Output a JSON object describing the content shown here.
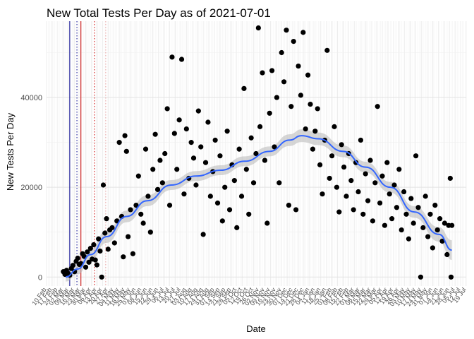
{
  "chart_data": {
    "type": "scatter",
    "title": "New Total Tests Per Day as of 2021-07-01",
    "xlabel": "Date",
    "ylabel": "New Tests Per Day",
    "ylim": [
      -2000,
      57000
    ],
    "yticks": [
      0,
      20000,
      40000
    ],
    "ytick_labels": [
      "0",
      "20000",
      "40000"
    ],
    "xlim": [
      "2020-02-10",
      "2021-07-19"
    ],
    "grid": true,
    "xtick_labels": [
      "10 Feb",
      "17 Feb",
      "24 Feb",
      "02 Mar",
      "09 Mar",
      "16 Mar",
      "23 Mar",
      "30 Mar",
      "06 Apr",
      "13 Apr",
      "20 Apr",
      "27 Apr",
      "04 May",
      "11 May",
      "18 May",
      "25 May",
      "01 Jun",
      "08 Jun",
      "15 Jun",
      "22 Jun",
      "29 Jun",
      "06 Jul",
      "13 Jul",
      "20 Jul",
      "27 Jul",
      "03 Aug",
      "10 Aug",
      "17 Aug",
      "24 Aug",
      "31 Aug",
      "07 Sep",
      "14 Sep",
      "21 Sep",
      "28 Sep",
      "05 Oct",
      "12 Oct",
      "19 Oct",
      "26 Oct",
      "02 Nov",
      "09 Nov",
      "16 Nov",
      "23 Nov",
      "30 Nov",
      "07 Dec",
      "14 Dec",
      "21 Dec",
      "28 Dec",
      "04 Jan",
      "11 Jan",
      "18 Jan",
      "25 Jan",
      "01 Feb",
      "08 Feb",
      "15 Feb",
      "22 Feb",
      "01 Mar",
      "08 Mar",
      "15 Mar",
      "22 Mar",
      "29 Mar",
      "05 Apr",
      "12 Apr",
      "19 Apr",
      "26 Apr",
      "03 May",
      "10 May",
      "17 May",
      "24 May",
      "31 May",
      "07 Jun",
      "14 Jun",
      "21 Jun",
      "28 Jun",
      "05 Jul",
      "12 Jul",
      "19 Jul"
    ],
    "reference_lines": [
      {
        "date": "2020-03-10",
        "style": "solid",
        "color": "#00008b"
      },
      {
        "date": "2020-03-19",
        "style": "dotted",
        "color": "#00008b"
      },
      {
        "date": "2020-03-24",
        "style": "solid",
        "color": "#cc0000"
      },
      {
        "date": "2020-04-10",
        "style": "dotted",
        "color": "#cc0000"
      },
      {
        "date": "2020-04-24",
        "style": "dotted",
        "color": "#e8a0a0"
      }
    ],
    "trend": {
      "color": "#3366ff",
      "band_color": "#bdbdbd",
      "points": [
        {
          "x": "2020-03-05",
          "y": 0,
          "band": 1000
        },
        {
          "x": "2020-03-20",
          "y": 1800,
          "band": 1200
        },
        {
          "x": "2020-04-05",
          "y": 5000,
          "band": 1300
        },
        {
          "x": "2020-04-25",
          "y": 9000,
          "band": 1400
        },
        {
          "x": "2020-05-20",
          "y": 13500,
          "band": 1300
        },
        {
          "x": "2020-06-15",
          "y": 17000,
          "band": 1200
        },
        {
          "x": "2020-07-15",
          "y": 20500,
          "band": 1100
        },
        {
          "x": "2020-08-15",
          "y": 22500,
          "band": 1100
        },
        {
          "x": "2020-09-15",
          "y": 23800,
          "band": 1100
        },
        {
          "x": "2020-10-15",
          "y": 25800,
          "band": 1100
        },
        {
          "x": "2020-11-15",
          "y": 28000,
          "band": 1100
        },
        {
          "x": "2020-12-10",
          "y": 30500,
          "band": 1300
        },
        {
          "x": "2020-12-25",
          "y": 31500,
          "band": 1400
        },
        {
          "x": "2021-01-15",
          "y": 30800,
          "band": 1400
        },
        {
          "x": "2021-02-15",
          "y": 28000,
          "band": 1300
        },
        {
          "x": "2021-03-15",
          "y": 24500,
          "band": 1200
        },
        {
          "x": "2021-04-15",
          "y": 20000,
          "band": 1200
        },
        {
          "x": "2021-05-15",
          "y": 14500,
          "band": 1300
        },
        {
          "x": "2021-06-15",
          "y": 9500,
          "band": 1600
        },
        {
          "x": "2021-07-01",
          "y": 6000,
          "band": 2200
        }
      ]
    },
    "series": [
      {
        "values": [
          {
            "x": "2020-03-02",
            "y": 1200
          },
          {
            "x": "2020-03-04",
            "y": 600
          },
          {
            "x": "2020-03-06",
            "y": 1500
          },
          {
            "x": "2020-03-08",
            "y": 800
          },
          {
            "x": "2020-03-10",
            "y": 400
          },
          {
            "x": "2020-03-12",
            "y": 1900
          },
          {
            "x": "2020-03-14",
            "y": 2600
          },
          {
            "x": "2020-03-16",
            "y": 1200
          },
          {
            "x": "2020-03-18",
            "y": 3500
          },
          {
            "x": "2020-03-20",
            "y": 4200
          },
          {
            "x": "2020-03-22",
            "y": 2800
          },
          {
            "x": "2020-03-24",
            "y": 3000
          },
          {
            "x": "2020-03-26",
            "y": 5200
          },
          {
            "x": "2020-03-28",
            "y": 4600
          },
          {
            "x": "2020-03-30",
            "y": 2200
          },
          {
            "x": "2020-04-01",
            "y": 5600
          },
          {
            "x": "2020-04-03",
            "y": 3300
          },
          {
            "x": "2020-04-05",
            "y": 6400
          },
          {
            "x": "2020-04-07",
            "y": 4000
          },
          {
            "x": "2020-04-09",
            "y": 7200
          },
          {
            "x": "2020-04-11",
            "y": 3800
          },
          {
            "x": "2020-04-13",
            "y": 2700
          },
          {
            "x": "2020-04-15",
            "y": 8500
          },
          {
            "x": "2020-04-17",
            "y": 5800
          },
          {
            "x": "2020-04-19",
            "y": 0
          },
          {
            "x": "2020-04-21",
            "y": 20500
          },
          {
            "x": "2020-04-23",
            "y": 9800
          },
          {
            "x": "2020-04-25",
            "y": 13000
          },
          {
            "x": "2020-04-27",
            "y": 6200
          },
          {
            "x": "2020-04-29",
            "y": 10500
          },
          {
            "x": "2020-05-02",
            "y": 11000
          },
          {
            "x": "2020-05-05",
            "y": 7600
          },
          {
            "x": "2020-05-08",
            "y": 12500
          },
          {
            "x": "2020-05-11",
            "y": 30000
          },
          {
            "x": "2020-05-14",
            "y": 13500
          },
          {
            "x": "2020-05-16",
            "y": 4500
          },
          {
            "x": "2020-05-18",
            "y": 31500
          },
          {
            "x": "2020-05-20",
            "y": 28000
          },
          {
            "x": "2020-05-22",
            "y": 9000
          },
          {
            "x": "2020-05-25",
            "y": 15000
          },
          {
            "x": "2020-05-28",
            "y": 5200
          },
          {
            "x": "2020-06-01",
            "y": 16000
          },
          {
            "x": "2020-06-04",
            "y": 22500
          },
          {
            "x": "2020-06-07",
            "y": 14000
          },
          {
            "x": "2020-06-10",
            "y": 12000
          },
          {
            "x": "2020-06-13",
            "y": 28500
          },
          {
            "x": "2020-06-16",
            "y": 18000
          },
          {
            "x": "2020-06-19",
            "y": 10000
          },
          {
            "x": "2020-06-22",
            "y": 24000
          },
          {
            "x": "2020-06-25",
            "y": 31800
          },
          {
            "x": "2020-06-28",
            "y": 19500
          },
          {
            "x": "2020-07-01",
            "y": 26000
          },
          {
            "x": "2020-07-04",
            "y": 21000
          },
          {
            "x": "2020-07-07",
            "y": 27500
          },
          {
            "x": "2020-07-10",
            "y": 37500
          },
          {
            "x": "2020-07-13",
            "y": 16000
          },
          {
            "x": "2020-07-16",
            "y": 49000
          },
          {
            "x": "2020-07-19",
            "y": 32000
          },
          {
            "x": "2020-07-22",
            "y": 24000
          },
          {
            "x": "2020-07-25",
            "y": 35000
          },
          {
            "x": "2020-07-28",
            "y": 48500
          },
          {
            "x": "2020-07-31",
            "y": 18500
          },
          {
            "x": "2020-08-03",
            "y": 33000
          },
          {
            "x": "2020-08-06",
            "y": 22000
          },
          {
            "x": "2020-08-09",
            "y": 30000
          },
          {
            "x": "2020-08-12",
            "y": 26500
          },
          {
            "x": "2020-08-15",
            "y": 20500
          },
          {
            "x": "2020-08-18",
            "y": 37000
          },
          {
            "x": "2020-08-21",
            "y": 29000
          },
          {
            "x": "2020-08-24",
            "y": 9500
          },
          {
            "x": "2020-08-27",
            "y": 25500
          },
          {
            "x": "2020-08-30",
            "y": 34500
          },
          {
            "x": "2020-09-02",
            "y": 18000
          },
          {
            "x": "2020-09-05",
            "y": 23500
          },
          {
            "x": "2020-09-08",
            "y": 30500
          },
          {
            "x": "2020-09-11",
            "y": 16500
          },
          {
            "x": "2020-09-14",
            "y": 27000
          },
          {
            "x": "2020-09-17",
            "y": 12500
          },
          {
            "x": "2020-09-20",
            "y": 20000
          },
          {
            "x": "2020-09-23",
            "y": 32500
          },
          {
            "x": "2020-09-26",
            "y": 15000
          },
          {
            "x": "2020-09-29",
            "y": 25000
          },
          {
            "x": "2020-10-02",
            "y": 21500
          },
          {
            "x": "2020-10-05",
            "y": 11000
          },
          {
            "x": "2020-10-08",
            "y": 28500
          },
          {
            "x": "2020-10-11",
            "y": 18000
          },
          {
            "x": "2020-10-14",
            "y": 42000
          },
          {
            "x": "2020-10-17",
            "y": 24000
          },
          {
            "x": "2020-10-20",
            "y": 14000
          },
          {
            "x": "2020-10-23",
            "y": 31000
          },
          {
            "x": "2020-10-26",
            "y": 21000
          },
          {
            "x": "2020-10-29",
            "y": 27500
          },
          {
            "x": "2020-11-01",
            "y": 55500
          },
          {
            "x": "2020-11-03",
            "y": 33500
          },
          {
            "x": "2020-11-06",
            "y": 45500
          },
          {
            "x": "2020-11-09",
            "y": 26000
          },
          {
            "x": "2020-11-12",
            "y": 12000
          },
          {
            "x": "2020-11-15",
            "y": 36500
          },
          {
            "x": "2020-11-18",
            "y": 46000
          },
          {
            "x": "2020-11-21",
            "y": 29000
          },
          {
            "x": "2020-11-24",
            "y": 40000
          },
          {
            "x": "2020-11-27",
            "y": 21000
          },
          {
            "x": "2020-11-30",
            "y": 50000
          },
          {
            "x": "2020-12-03",
            "y": 43500
          },
          {
            "x": "2020-12-06",
            "y": 55000
          },
          {
            "x": "2020-12-09",
            "y": 16000
          },
          {
            "x": "2020-12-12",
            "y": 38000
          },
          {
            "x": "2020-12-15",
            "y": 52500
          },
          {
            "x": "2020-12-18",
            "y": 15000
          },
          {
            "x": "2020-12-21",
            "y": 47000
          },
          {
            "x": "2020-12-24",
            "y": 40500
          },
          {
            "x": "2020-12-27",
            "y": 54500
          },
          {
            "x": "2020-12-30",
            "y": 33000
          },
          {
            "x": "2021-01-02",
            "y": 45000
          },
          {
            "x": "2021-01-05",
            "y": 38500
          },
          {
            "x": "2021-01-08",
            "y": 28500
          },
          {
            "x": "2021-01-11",
            "y": 32500
          },
          {
            "x": "2021-01-14",
            "y": 37500
          },
          {
            "x": "2021-01-17",
            "y": 25000
          },
          {
            "x": "2021-01-20",
            "y": 18500
          },
          {
            "x": "2021-01-23",
            "y": 30500
          },
          {
            "x": "2021-01-26",
            "y": 50500
          },
          {
            "x": "2021-01-29",
            "y": 22000
          },
          {
            "x": "2021-02-01",
            "y": 27000
          },
          {
            "x": "2021-02-04",
            "y": 33500
          },
          {
            "x": "2021-02-07",
            "y": 20000
          },
          {
            "x": "2021-02-10",
            "y": 14500
          },
          {
            "x": "2021-02-13",
            "y": 29500
          },
          {
            "x": "2021-02-16",
            "y": 24500
          },
          {
            "x": "2021-02-19",
            "y": 18000
          },
          {
            "x": "2021-02-22",
            "y": 27500
          },
          {
            "x": "2021-02-25",
            "y": 21500
          },
          {
            "x": "2021-02-28",
            "y": 15000
          },
          {
            "x": "2021-03-03",
            "y": 25500
          },
          {
            "x": "2021-03-06",
            "y": 19000
          },
          {
            "x": "2021-03-09",
            "y": 30500
          },
          {
            "x": "2021-03-12",
            "y": 14000
          },
          {
            "x": "2021-03-15",
            "y": 23000
          },
          {
            "x": "2021-03-18",
            "y": 17000
          },
          {
            "x": "2021-03-21",
            "y": 26000
          },
          {
            "x": "2021-03-24",
            "y": 12500
          },
          {
            "x": "2021-03-27",
            "y": 21000
          },
          {
            "x": "2021-03-30",
            "y": 38000
          },
          {
            "x": "2021-04-02",
            "y": 16500
          },
          {
            "x": "2021-04-05",
            "y": 22500
          },
          {
            "x": "2021-04-08",
            "y": 11500
          },
          {
            "x": "2021-04-11",
            "y": 25500
          },
          {
            "x": "2021-04-14",
            "y": 18500
          },
          {
            "x": "2021-04-17",
            "y": 13000
          },
          {
            "x": "2021-04-20",
            "y": 20500
          },
          {
            "x": "2021-04-23",
            "y": 15500
          },
          {
            "x": "2021-04-26",
            "y": 24000
          },
          {
            "x": "2021-04-29",
            "y": 10500
          },
          {
            "x": "2021-05-02",
            "y": 19000
          },
          {
            "x": "2021-05-05",
            "y": 14000
          },
          {
            "x": "2021-05-08",
            "y": 8500
          },
          {
            "x": "2021-05-11",
            "y": 17500
          },
          {
            "x": "2021-05-14",
            "y": 12000
          },
          {
            "x": "2021-05-17",
            "y": 27000
          },
          {
            "x": "2021-05-20",
            "y": 15500
          },
          {
            "x": "2021-05-23",
            "y": 0
          },
          {
            "x": "2021-05-26",
            "y": 11000
          },
          {
            "x": "2021-05-29",
            "y": 18000
          },
          {
            "x": "2021-06-01",
            "y": 9000
          },
          {
            "x": "2021-06-04",
            "y": 14000
          },
          {
            "x": "2021-06-07",
            "y": 6500
          },
          {
            "x": "2021-06-10",
            "y": 16000
          },
          {
            "x": "2021-06-13",
            "y": 10500
          },
          {
            "x": "2021-06-16",
            "y": 13000
          },
          {
            "x": "2021-06-19",
            "y": 8000
          },
          {
            "x": "2021-06-22",
            "y": 12000
          },
          {
            "x": "2021-06-25",
            "y": 5000
          },
          {
            "x": "2021-06-27",
            "y": 11500
          },
          {
            "x": "2021-06-29",
            "y": 22000
          },
          {
            "x": "2021-06-30",
            "y": 0
          },
          {
            "x": "2021-07-01",
            "y": 11500
          }
        ]
      }
    ]
  }
}
